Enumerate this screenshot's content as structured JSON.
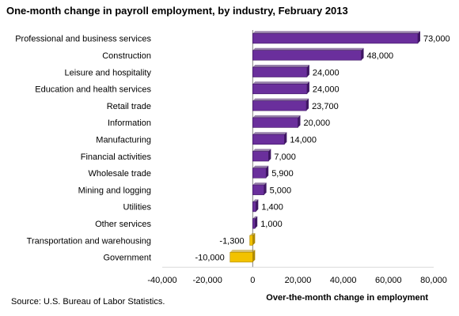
{
  "chart_data": {
    "type": "bar",
    "orientation": "horizontal",
    "title": "One-month change in payroll employment, by industry, February 2013",
    "xlabel": "Over-the-month change in employment",
    "ylabel": "",
    "xlim": [
      -40000,
      80000
    ],
    "x_ticks": [
      -40000,
      -20000,
      0,
      20000,
      40000,
      60000,
      80000
    ],
    "x_tick_labels": [
      "-40,000",
      "-20,000",
      "0",
      "20,000",
      "40,000",
      "60,000",
      "80,000"
    ],
    "grid": false,
    "categories": [
      "Professional and business services",
      "Construction",
      "Leisure and hospitality",
      "Education and health services",
      "Retail trade",
      "Information",
      "Manufacturing",
      "Financial activities",
      "Wholesale trade",
      "Mining and logging",
      "Utilities",
      "Other services",
      "Transportation and warehousing",
      "Government"
    ],
    "values": [
      73000,
      48000,
      24000,
      24000,
      23700,
      20000,
      14000,
      7000,
      5900,
      5000,
      1400,
      1000,
      -1300,
      -10000
    ],
    "data_labels": [
      "73,000",
      "48,000",
      "24,000",
      "24,000",
      "23,700",
      "20,000",
      "14,000",
      "7,000",
      "5,900",
      "5,000",
      "1,400",
      "1,000",
      "-1,300",
      "-10,000"
    ],
    "colors": {
      "positive": "#6a2f9c",
      "positive_dark": "#3f1763",
      "negative": "#f2c200",
      "negative_dark": "#b08a00",
      "axis": "#808080"
    }
  },
  "source": "Source:  U.S. Bureau of Labor Statistics."
}
